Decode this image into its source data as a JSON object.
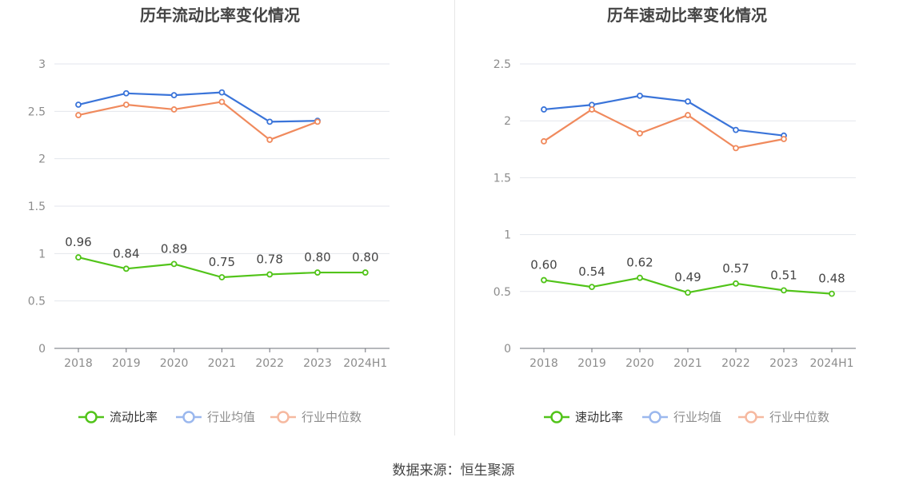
{
  "source": "数据来源：恒生聚源",
  "chart_data": [
    {
      "type": "line",
      "title": "历年流动比率变化情况",
      "categories": [
        "2018",
        "2019",
        "2020",
        "2021",
        "2022",
        "2023",
        "2024H1"
      ],
      "ylim": [
        0,
        3
      ],
      "yticks": [
        "0",
        "0.5",
        "1",
        "1.5",
        "2",
        "2.5",
        "3"
      ],
      "grid": true,
      "legend_position": "bottom-center",
      "series": [
        {
          "name": "流动比率",
          "color": "#52c41a",
          "values": [
            0.96,
            0.84,
            0.89,
            0.75,
            0.78,
            0.8,
            0.8
          ],
          "labels": [
            "0.96",
            "0.84",
            "0.89",
            "0.75",
            "0.78",
            "0.80",
            "0.80"
          ]
        },
        {
          "name": "行业均值",
          "color": "#3a74d9",
          "values": [
            2.57,
            2.69,
            2.67,
            2.7,
            2.39,
            2.4,
            null
          ]
        },
        {
          "name": "行业中位数",
          "color": "#f08a5d",
          "values": [
            2.46,
            2.57,
            2.52,
            2.6,
            2.2,
            2.39,
            null
          ]
        }
      ]
    },
    {
      "type": "line",
      "title": "历年速动比率变化情况",
      "categories": [
        "2018",
        "2019",
        "2020",
        "2021",
        "2022",
        "2023",
        "2024H1"
      ],
      "ylim": [
        0,
        2.5
      ],
      "yticks": [
        "0",
        "0.5",
        "1",
        "1.5",
        "2",
        "2.5"
      ],
      "grid": true,
      "legend_position": "bottom-center",
      "series": [
        {
          "name": "速动比率",
          "color": "#52c41a",
          "values": [
            0.6,
            0.54,
            0.62,
            0.49,
            0.57,
            0.51,
            0.48
          ],
          "labels": [
            "0.60",
            "0.54",
            "0.62",
            "0.49",
            "0.57",
            "0.51",
            "0.48"
          ]
        },
        {
          "name": "行业均值",
          "color": "#3a74d9",
          "values": [
            2.1,
            2.14,
            2.22,
            2.17,
            1.92,
            1.87,
            null
          ]
        },
        {
          "name": "行业中位数",
          "color": "#f08a5d",
          "values": [
            1.82,
            2.1,
            1.89,
            2.05,
            1.76,
            1.84,
            null
          ]
        }
      ]
    }
  ]
}
